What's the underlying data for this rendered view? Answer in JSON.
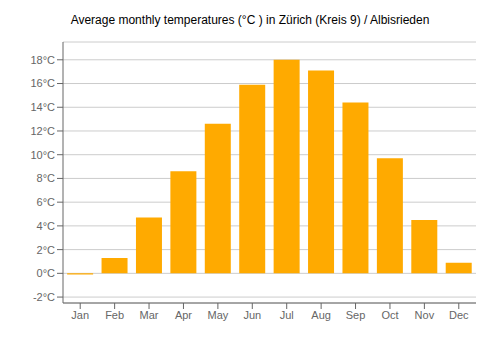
{
  "chart_data": {
    "type": "bar",
    "title": "Average monthly temperatures (°C ) in Zürich (Kreis 9) / Albisrieden",
    "categories": [
      "Jan",
      "Feb",
      "Mar",
      "Apr",
      "May",
      "Jun",
      "Jul",
      "Aug",
      "Sep",
      "Oct",
      "Nov",
      "Dec"
    ],
    "values": [
      -0.1,
      1.3,
      4.7,
      8.6,
      12.6,
      15.9,
      18.0,
      17.1,
      14.4,
      9.7,
      4.5,
      0.9
    ],
    "color": "#FFAA00",
    "ylim": [
      -2.5,
      19.5
    ],
    "yticks": [
      {
        "value": -2,
        "label": "-2°C"
      },
      {
        "value": 0,
        "label": "0°C"
      },
      {
        "value": 2,
        "label": "2°C"
      },
      {
        "value": 4,
        "label": "4°C"
      },
      {
        "value": 6,
        "label": "6°C"
      },
      {
        "value": 8,
        "label": "8°C"
      },
      {
        "value": 10,
        "label": "10°C"
      },
      {
        "value": 12,
        "label": "12°C"
      },
      {
        "value": 14,
        "label": "14°C"
      },
      {
        "value": 16,
        "label": "16°C"
      },
      {
        "value": 18,
        "label": "18°C"
      }
    ],
    "grid": true
  }
}
